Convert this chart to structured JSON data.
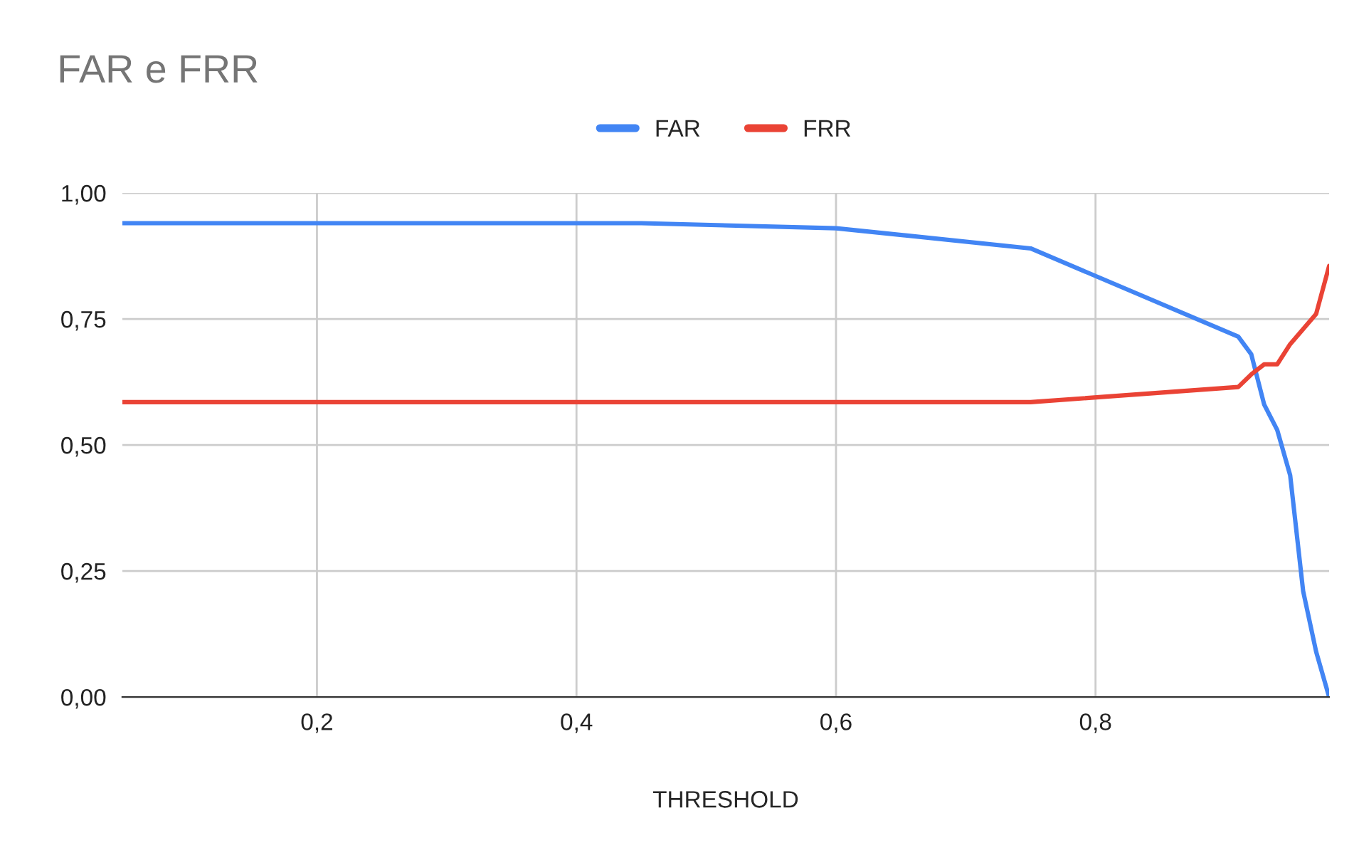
{
  "chart_data": {
    "type": "line",
    "title": "FAR e FRR",
    "xlabel": "THRESHOLD",
    "series": [
      {
        "name": "FAR",
        "color": "#4285f4",
        "x": [
          0.05,
          0.45,
          0.6,
          0.75,
          0.91,
          0.92,
          0.93,
          0.94,
          0.95,
          0.96,
          0.97,
          0.98
        ],
        "values": [
          0.94,
          0.94,
          0.93,
          0.89,
          0.715,
          0.68,
          0.58,
          0.53,
          0.44,
          0.21,
          0.09,
          0.0
        ]
      },
      {
        "name": "FRR",
        "color": "#ea4335",
        "x": [
          0.05,
          0.75,
          0.91,
          0.92,
          0.93,
          0.94,
          0.95,
          0.97,
          0.98
        ],
        "values": [
          0.585,
          0.585,
          0.615,
          0.64,
          0.66,
          0.66,
          0.7,
          0.76,
          0.855
        ]
      }
    ],
    "xlim": [
      0.05,
      0.98
    ],
    "ylim": [
      0,
      1
    ],
    "xticks": [
      {
        "value": 0.2,
        "label": "0,2"
      },
      {
        "value": 0.4,
        "label": "0,4"
      },
      {
        "value": 0.6,
        "label": "0,6"
      },
      {
        "value": 0.8,
        "label": "0,8"
      }
    ],
    "yticks": [
      {
        "value": 0,
        "label": "0,00"
      },
      {
        "value": 0.25,
        "label": "0,25"
      },
      {
        "value": 0.5,
        "label": "0,50"
      },
      {
        "value": 0.75,
        "label": "0,75"
      },
      {
        "value": 1,
        "label": "1,00"
      }
    ],
    "grid": true,
    "legend": "top",
    "marker": "none",
    "line_style": "solid"
  }
}
